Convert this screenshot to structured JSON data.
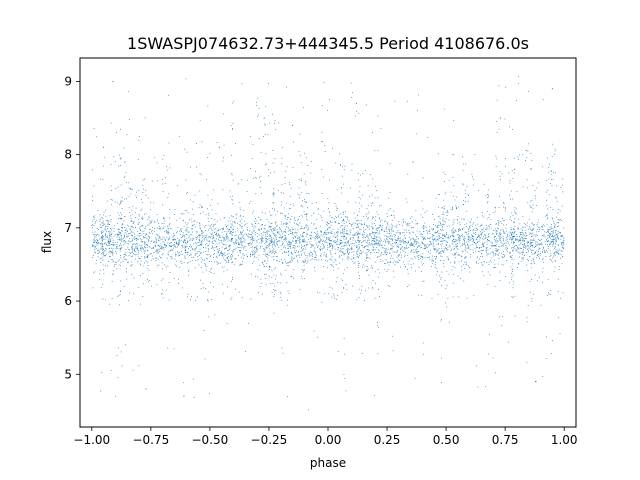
{
  "chart_data": {
    "type": "scatter",
    "title": "1SWASPJ074632.73+444345.5 Period 4108676.0s",
    "xlabel": "phase",
    "ylabel": "flux",
    "xlim": [
      -1.05,
      1.05
    ],
    "ylim": [
      4.28,
      9.32
    ],
    "x_ticks": [
      -1.0,
      -0.75,
      -0.5,
      -0.25,
      0.0,
      0.25,
      0.5,
      0.75,
      1.0
    ],
    "x_tick_labels": [
      "−1.00",
      "−0.75",
      "−0.50",
      "−0.25",
      "0.00",
      "0.25",
      "0.50",
      "0.75",
      "1.00"
    ],
    "y_ticks": [
      5,
      6,
      7,
      8,
      9
    ],
    "y_tick_labels": [
      "5",
      "6",
      "7",
      "8",
      "9"
    ],
    "grid": false,
    "point_color": "#1f77b4",
    "phase_range": [
      -1.0,
      1.0
    ],
    "baseline_flux": 6.8,
    "flux_range_observed": [
      4.5,
      9.1
    ],
    "point_sample": [
      {
        "x": -0.98,
        "y": 6.8
      },
      {
        "x": -0.95,
        "y": 8.1
      },
      {
        "x": -0.91,
        "y": 9.0
      },
      {
        "x": -0.86,
        "y": 7.9
      },
      {
        "x": -0.82,
        "y": 6.7
      },
      {
        "x": -0.77,
        "y": 4.8
      },
      {
        "x": -0.72,
        "y": 6.9
      },
      {
        "x": -0.66,
        "y": 6.7
      },
      {
        "x": -0.61,
        "y": 4.7
      },
      {
        "x": -0.55,
        "y": 6.8
      },
      {
        "x": -0.46,
        "y": 8.1
      },
      {
        "x": -0.38,
        "y": 7.6
      },
      {
        "x": -0.27,
        "y": 8.5
      },
      {
        "x": -0.22,
        "y": 6.9
      },
      {
        "x": -0.15,
        "y": 8.4
      },
      {
        "x": -0.06,
        "y": 7.2
      },
      {
        "x": 0.03,
        "y": 6.8
      },
      {
        "x": 0.12,
        "y": 8.7
      },
      {
        "x": 0.21,
        "y": 6.6
      },
      {
        "x": 0.29,
        "y": 6.8
      },
      {
        "x": 0.36,
        "y": 7.9
      },
      {
        "x": 0.45,
        "y": 6.7
      },
      {
        "x": 0.53,
        "y": 8.0
      },
      {
        "x": 0.62,
        "y": 6.8
      },
      {
        "x": 0.73,
        "y": 8.5
      },
      {
        "x": 0.79,
        "y": 7.8
      },
      {
        "x": 0.88,
        "y": 4.9
      },
      {
        "x": 0.95,
        "y": 8.9
      },
      {
        "x": 0.99,
        "y": 6.8
      }
    ]
  }
}
